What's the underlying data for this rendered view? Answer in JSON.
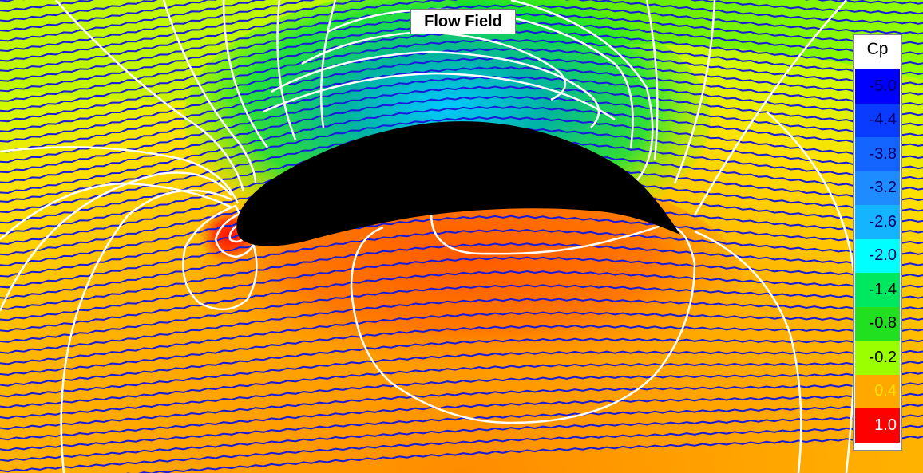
{
  "title": "Flow Field",
  "chart_data": {
    "type": "heatmap",
    "title": "Flow Field",
    "description_of_layers": [
      "pressure coefficient color field",
      "streamlines",
      "isobar contours",
      "airfoil"
    ],
    "colorbar": {
      "label": "Cp",
      "ticks": [
        "-5.0",
        "-4.4",
        "-3.8",
        "-3.2",
        "-2.6",
        "-2.0",
        "-1.4",
        "-0.8",
        "-0.2",
        "0.4",
        "1.0"
      ],
      "colors": [
        "#0000ff",
        "#0a3cff",
        "#1464ff",
        "#1e8cff",
        "#14b4ff",
        "#00ffff",
        "#00e860",
        "#20e020",
        "#9cff00",
        "#ffa800",
        "#ff0000"
      ],
      "label_colors": [
        "#00006a",
        "#00006a",
        "#00006a",
        "#00006a",
        "#00006a",
        "#00006a",
        "#000000",
        "#000000",
        "#000000",
        "#ffe000",
        "#ffffff"
      ]
    },
    "colors": {
      "streamline": "#1a1adc",
      "contour": "#ffffff",
      "airfoil": "#000000"
    }
  }
}
